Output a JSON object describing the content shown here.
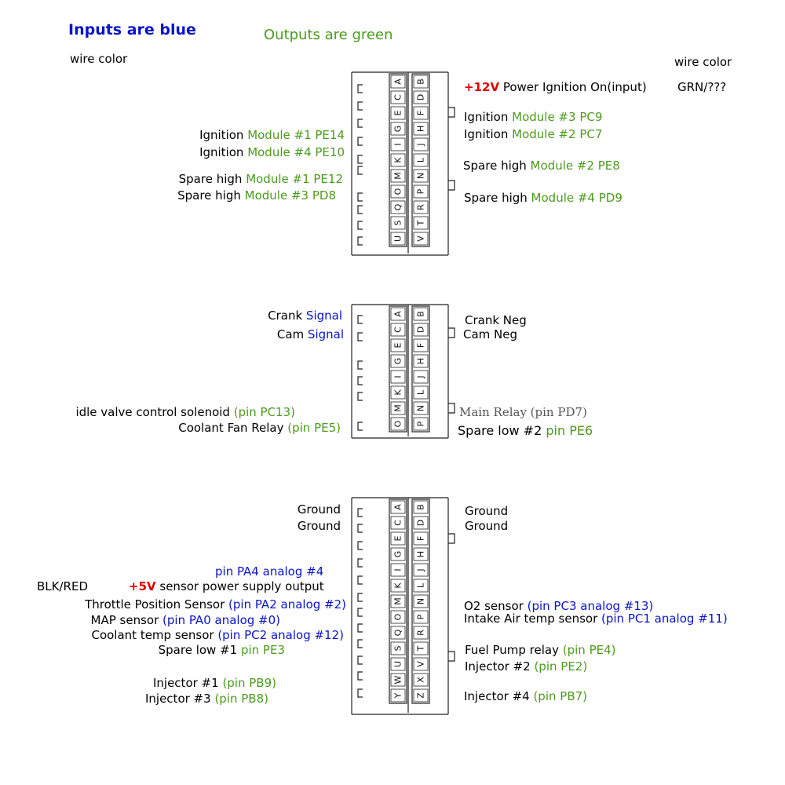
{
  "legend": {
    "inputs": "Inputs are blue",
    "outputs": "Outputs are green"
  },
  "headers": {
    "wire_color_left": "wire color",
    "wire_color_right": "wire color"
  },
  "c1": {
    "left_pins": [
      "B",
      "D",
      "F",
      "H",
      "J",
      "L",
      "N",
      "P",
      "R",
      "T",
      "V"
    ],
    "right_pins": [
      "A",
      "C",
      "E",
      "G",
      "I",
      "K",
      "M",
      "O",
      "Q",
      "S",
      "U"
    ],
    "r1": {
      "a": "+12V",
      "b": " Power Ignition On(input)"
    },
    "r1_wire": "GRN/???",
    "r2": {
      "a": "Ignition ",
      "b": "Module #3 PC9"
    },
    "r3": {
      "a": "Ignition ",
      "b": "Module #2 PC7"
    },
    "r4": {
      "a": "Spare high ",
      "b": "Module #2 PE8"
    },
    "r5": {
      "a": "Spare high ",
      "b": "Module #4 PD9"
    },
    "l1": {
      "a": "Ignition ",
      "b": "Module #1 PE14"
    },
    "l2": {
      "a": "Ignition ",
      "b": "Module #4 PE10"
    },
    "l3": {
      "a": "Spare high ",
      "b": "Module #1 PE12"
    },
    "l4": {
      "a": "Spare high ",
      "b": "Module #3 PD8"
    }
  },
  "c2": {
    "left_pins": [
      "B",
      "D",
      "F",
      "H",
      "J",
      "L",
      "N",
      "P"
    ],
    "right_pins": [
      "A",
      "C",
      "E",
      "G",
      "I",
      "K",
      "M",
      "O"
    ],
    "l1": {
      "a": "Crank ",
      "b": "Signal"
    },
    "l2": {
      "a": "Cam ",
      "b": "Signal"
    },
    "l3": {
      "a": "idle valve control solenoid ",
      "b": "(pin PC13)"
    },
    "l4": {
      "a": "Coolant Fan Relay ",
      "b": "(pin PE5)"
    },
    "r1": "Crank Neg",
    "r2": "Cam Neg",
    "r3": "Main Relay (pin PD7)",
    "r4": {
      "a": "Spare low #2 ",
      "b": "pin PE6"
    }
  },
  "c3": {
    "left_pins": [
      "B",
      "D",
      "F",
      "H",
      "J",
      "L",
      "N",
      "P",
      "R",
      "T",
      "V",
      "X",
      "Z"
    ],
    "right_pins": [
      "A",
      "C",
      "E",
      "G",
      "I",
      "K",
      "M",
      "O",
      "Q",
      "S",
      "U",
      "W",
      "Y"
    ],
    "l1": "Ground",
    "l2": "Ground",
    "l_pa4": "pin PA4 analog #4",
    "l_blkred": "BLK/RED",
    "l_5v": {
      "a": "+5V",
      "b": " sensor power supply output"
    },
    "l_tps": {
      "a": "Throttle Position Sensor ",
      "b": "(pin PA2 analog #2)"
    },
    "l_map": {
      "a": "MAP sensor ",
      "b": "(pin PA0 analog #0)"
    },
    "l_clt": {
      "a": "Coolant temp sensor ",
      "b": "(pin PC2 analog #12)"
    },
    "l_spl1": {
      "a": "Spare low #1 ",
      "b": "pin PE3"
    },
    "l_inj1": {
      "a": "Injector #1 ",
      "b": "(pin PB9)"
    },
    "l_inj3": {
      "a": "Injector #3 ",
      "b": "(pin PB8)"
    },
    "r1": "Ground",
    "r2": "Ground",
    "r_o2": {
      "a": "O2 sensor ",
      "b": "(pin PC3 analog #13)"
    },
    "r_iat": {
      "a": "Intake Air temp sensor ",
      "b": "(pin PC1 analog #11)"
    },
    "r_fp": {
      "a": "Fuel Pump relay ",
      "b": "(pin PE4)"
    },
    "r_inj2": {
      "a": "Injector #2 ",
      "b": "(pin PE2)"
    },
    "r_inj4": {
      "a": "Injector #4 ",
      "b": "(pin PB7)"
    }
  }
}
